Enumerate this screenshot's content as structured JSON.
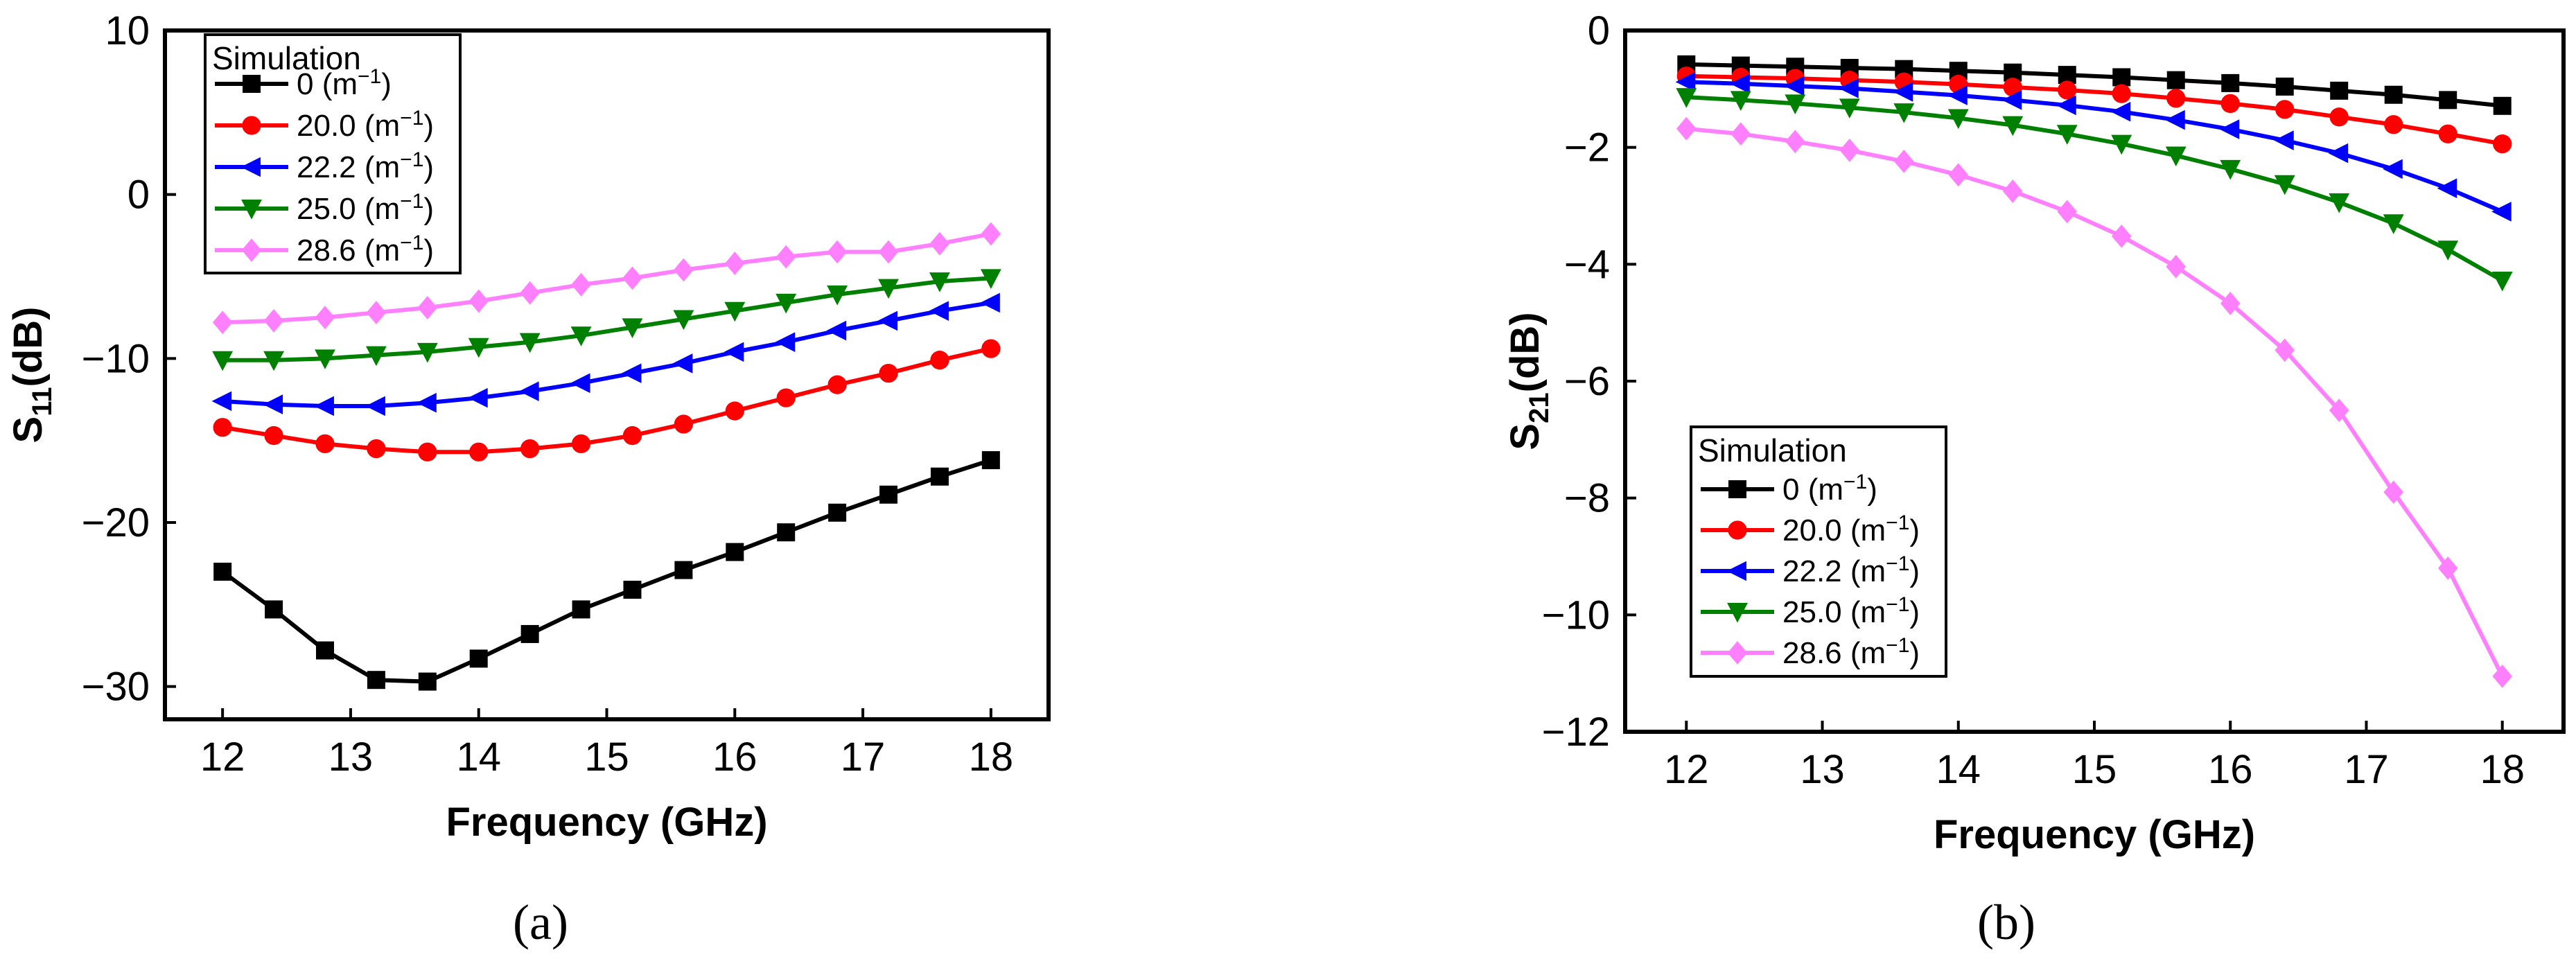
{
  "chart_data": [
    {
      "type": "line",
      "panel_label": "(a)",
      "xlabel": "Frequency (GHz)",
      "ylabel": "S11(dB)",
      "ylabel_main": "S",
      "ylabel_sub": "11",
      "ylabel_rest": "(dB)",
      "xlim": [
        11.55,
        18.45
      ],
      "ylim": [
        -32,
        10
      ],
      "xticks": [
        12,
        13,
        14,
        15,
        16,
        17,
        18
      ],
      "yticks": [
        10,
        0,
        -10,
        -20,
        -30
      ],
      "ytick_labels": [
        "10",
        "0",
        "−10",
        "−20",
        "−30"
      ],
      "x": [
        12,
        12.4,
        12.8,
        13.2,
        13.6,
        14,
        14.4,
        14.8,
        15.2,
        15.6,
        16,
        16.4,
        16.8,
        17.2,
        17.6,
        18
      ],
      "legend_title": "Simulation",
      "legend_position": "top-left",
      "series": [
        {
          "name": "0 (m",
          "values": [
            -23.0,
            -25.3,
            -27.8,
            -29.6,
            -29.7,
            -28.3,
            -26.8,
            -25.3,
            -24.1,
            -22.9,
            -21.8,
            -20.6,
            -19.4,
            -18.3,
            -17.2,
            -16.2
          ]
        },
        {
          "name": "20.0 (m",
          "values": [
            -14.2,
            -14.7,
            -15.2,
            -15.5,
            -15.7,
            -15.7,
            -15.5,
            -15.2,
            -14.7,
            -14.0,
            -13.2,
            -12.4,
            -11.6,
            -10.9,
            -10.1,
            -9.4
          ]
        },
        {
          "name": "22.2 (m",
          "values": [
            -12.6,
            -12.8,
            -12.9,
            -12.9,
            -12.7,
            -12.4,
            -12.0,
            -11.5,
            -10.9,
            -10.3,
            -9.6,
            -9.0,
            -8.3,
            -7.7,
            -7.1,
            -6.6
          ]
        },
        {
          "name": "25.0 (m",
          "values": [
            -10.1,
            -10.1,
            -10.0,
            -9.8,
            -9.6,
            -9.3,
            -9.0,
            -8.6,
            -8.1,
            -7.6,
            -7.1,
            -6.6,
            -6.1,
            -5.7,
            -5.3,
            -5.1
          ]
        },
        {
          "name": "28.6 (m",
          "values": [
            -7.8,
            -7.7,
            -7.5,
            -7.2,
            -6.9,
            -6.5,
            -6.0,
            -5.5,
            -5.1,
            -4.6,
            -4.2,
            -3.8,
            -3.5,
            -3.5,
            -3.0,
            -2.4
          ]
        }
      ]
    },
    {
      "type": "line",
      "panel_label": "(b)",
      "xlabel": "Frequency (GHz)",
      "ylabel": "S21(dB)",
      "ylabel_main": "S",
      "ylabel_sub": "21",
      "ylabel_rest": "(dB)",
      "xlim": [
        11.55,
        18.45
      ],
      "ylim": [
        -12,
        0
      ],
      "xticks": [
        12,
        13,
        14,
        15,
        16,
        17,
        18
      ],
      "yticks": [
        0,
        -2,
        -4,
        -6,
        -8,
        -10,
        -12
      ],
      "ytick_labels": [
        "0",
        "−2",
        "−4",
        "−6",
        "−8",
        "−10",
        "−12"
      ],
      "x": [
        12,
        12.4,
        12.8,
        13.2,
        13.6,
        14,
        14.4,
        14.8,
        15.2,
        15.6,
        16,
        16.4,
        16.8,
        17.2,
        17.6,
        18
      ],
      "legend_title": "Simulation",
      "legend_position": "bottom-left",
      "series": [
        {
          "name": "0 (m",
          "values": [
            -0.58,
            -0.6,
            -0.62,
            -0.64,
            -0.66,
            -0.69,
            -0.72,
            -0.76,
            -0.8,
            -0.85,
            -0.9,
            -0.96,
            -1.03,
            -1.1,
            -1.19,
            -1.29
          ]
        },
        {
          "name": "20.0 (m",
          "values": [
            -0.78,
            -0.8,
            -0.82,
            -0.85,
            -0.88,
            -0.92,
            -0.97,
            -1.02,
            -1.08,
            -1.16,
            -1.25,
            -1.35,
            -1.48,
            -1.61,
            -1.77,
            -1.94
          ]
        },
        {
          "name": "22.2 (m",
          "values": [
            -0.88,
            -0.91,
            -0.95,
            -0.99,
            -1.05,
            -1.11,
            -1.19,
            -1.28,
            -1.39,
            -1.53,
            -1.69,
            -1.88,
            -2.1,
            -2.37,
            -2.7,
            -3.1
          ]
        },
        {
          "name": "25.0 (m",
          "values": [
            -1.14,
            -1.19,
            -1.25,
            -1.32,
            -1.4,
            -1.5,
            -1.62,
            -1.77,
            -1.94,
            -2.14,
            -2.37,
            -2.63,
            -2.94,
            -3.3,
            -3.75,
            -4.28
          ]
        },
        {
          "name": "28.6 (m",
          "values": [
            -1.68,
            -1.77,
            -1.9,
            -2.05,
            -2.24,
            -2.47,
            -2.75,
            -3.1,
            -3.52,
            -4.04,
            -4.67,
            -5.47,
            -6.5,
            -7.9,
            -9.2,
            -11.05
          ]
        }
      ]
    }
  ],
  "legend_unit_sup": "−1",
  "legend_unit_close": ")",
  "series_colors": [
    "#000000",
    "#ff0000",
    "#0000ff",
    "#008000",
    "#ff80ff"
  ],
  "series_markers": [
    "square",
    "circle",
    "triangle-left",
    "triangle-down",
    "diamond"
  ]
}
